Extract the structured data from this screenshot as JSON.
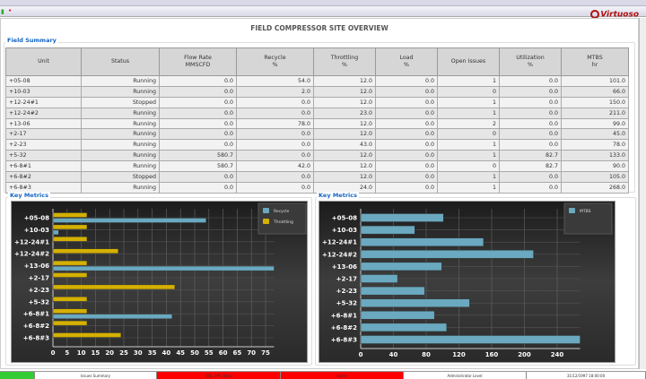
{
  "app": {
    "logo_text": "Virtuoso",
    "page_title": "FIELD COMPRESSOR SITE OVERVIEW"
  },
  "field_summary": {
    "title": "Field Summary",
    "columns": [
      [
        "Unit",
        ""
      ],
      [
        "Status",
        ""
      ],
      [
        "Flow Rate",
        "MMSCFD"
      ],
      [
        "Recycle",
        "%"
      ],
      [
        "Throttling",
        "%"
      ],
      [
        "Load",
        "%"
      ],
      [
        "Open Issues",
        ""
      ],
      [
        "Utilization",
        "%"
      ],
      [
        "MTBS",
        "hr"
      ]
    ],
    "rows": [
      [
        "+05-08",
        "Running",
        "0.0",
        "54.0",
        "12.0",
        "0.0",
        "1",
        "0.0",
        "101.0"
      ],
      [
        "+10-03",
        "Running",
        "0.0",
        "2.0",
        "12.0",
        "0.0",
        "0",
        "0.0",
        "66.0"
      ],
      [
        "+12-24#1",
        "Stopped",
        "0.0",
        "0.0",
        "12.0",
        "0.0",
        "1",
        "0.0",
        "150.0"
      ],
      [
        "+12-24#2",
        "Running",
        "0.0",
        "0.0",
        "23.0",
        "0.0",
        "1",
        "0.0",
        "211.0"
      ],
      [
        "+13-06",
        "Running",
        "0.0",
        "78.0",
        "12.0",
        "0.0",
        "2",
        "0.0",
        "99.0"
      ],
      [
        "+2-17",
        "Running",
        "0.0",
        "0.0",
        "12.0",
        "0.0",
        "0",
        "0.0",
        "45.0"
      ],
      [
        "+2-23",
        "Running",
        "0.0",
        "0.0",
        "43.0",
        "0.0",
        "1",
        "0.0",
        "78.0"
      ],
      [
        "+5-32",
        "Running",
        "580.7",
        "0.0",
        "12.0",
        "0.0",
        "1",
        "82.7",
        "133.0"
      ],
      [
        "+6-8#1",
        "Running",
        "580.7",
        "42.0",
        "12.0",
        "0.0",
        "0",
        "82.7",
        "90.0"
      ],
      [
        "+6-8#2",
        "Stopped",
        "0.0",
        "0.0",
        "12.0",
        "0.0",
        "1",
        "0.0",
        "105.0"
      ],
      [
        "+6-8#3",
        "Running",
        "0.0",
        "0.0",
        "24.0",
        "0.0",
        "1",
        "0.0",
        "268.0"
      ]
    ]
  },
  "chart_data": [
    {
      "type": "bar",
      "orientation": "horizontal",
      "title": "Key Metrics",
      "categories": [
        "+05-08",
        "+10-03",
        "+12-24#1",
        "+12-24#2",
        "+13-06",
        "+2-17",
        "+2-23",
        "+5-32",
        "+6-8#1",
        "+6-8#2",
        "+6-8#3"
      ],
      "series": [
        {
          "name": "Recycle",
          "color": "#6aa9c0",
          "values": [
            54,
            2,
            0,
            0,
            78,
            0,
            0,
            0,
            42,
            0,
            0
          ]
        },
        {
          "name": "Throttling",
          "color": "#d4b000",
          "values": [
            12,
            12,
            12,
            23,
            12,
            12,
            43,
            12,
            12,
            12,
            24
          ]
        }
      ],
      "xlim": [
        0,
        78
      ],
      "xticks": [
        0,
        5,
        10,
        15,
        20,
        25,
        30,
        35,
        40,
        45,
        50,
        55,
        60,
        65,
        70,
        75
      ],
      "grid": true,
      "legend": "top-right"
    },
    {
      "type": "bar",
      "orientation": "horizontal",
      "title": "Key Metrics",
      "categories": [
        "+05-08",
        "+10-03",
        "+12-24#1",
        "+12-24#2",
        "+13-06",
        "+2-17",
        "+2-23",
        "+5-32",
        "+6-8#1",
        "+6-8#2",
        "+6-8#3"
      ],
      "series": [
        {
          "name": "MTBS",
          "color": "#6aa9c0",
          "values": [
            101,
            66,
            150,
            211,
            99,
            45,
            78,
            133,
            90,
            105,
            268
          ]
        }
      ],
      "xlim": [
        0,
        268
      ],
      "xticks": [
        0,
        40,
        80,
        120,
        160,
        200,
        240
      ],
      "grid": true,
      "legend": "top-right"
    }
  ],
  "status_bar": [
    {
      "label": "",
      "color": "#33cc33"
    },
    {
      "label": "Issues Summary",
      "color": "#ffffff"
    },
    {
      "label": "SQL OPC Data",
      "color": "#ff0000"
    },
    {
      "label": "Alarm",
      "color": "#ff0000"
    },
    {
      "label": "Administrator Level",
      "color": "#ffffff"
    },
    {
      "label": "31/12/1997 18:00:00",
      "color": "#ffffff"
    }
  ]
}
